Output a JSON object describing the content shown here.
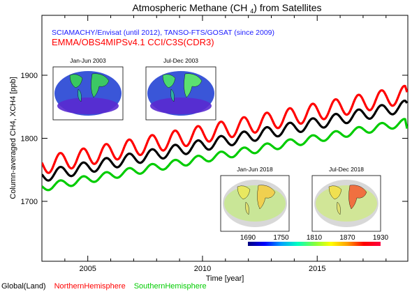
{
  "chart_data": {
    "type": "line",
    "title": "Atmospheric Methane (CH4) from Satellites",
    "subtitle_1": "SCIAMACHY/Envisat (until 2012), TANSO-FTS/GOSAT (since 2009)",
    "subtitle_2": "EMMA/OBS4MIPSv4.1 CCI/C3S(CDR3)",
    "xlabel": "Time [year]",
    "ylabel": "Column-averaged CH4, XCH4 [ppb]",
    "xlim": [
      2003.0,
      2018.95
    ],
    "ylim": [
      1605,
      1995
    ],
    "x_ticks": [
      2005,
      2010,
      2015
    ],
    "x_tick_labels": [
      "2005",
      "2010",
      "2015"
    ],
    "y_ticks": [
      1700,
      1800,
      1900
    ],
    "y_tick_labels": [
      "1700",
      "1800",
      "1900"
    ],
    "grid": false,
    "series": [
      {
        "name": "Global(Land)",
        "color": "#000000",
        "start_value": 1740,
        "trend_per_year": 7.0,
        "seasonal_amplitude": 9,
        "end_drop": 3
      },
      {
        "name": "NorthernHemisphere",
        "color": "#ff0000",
        "start_value": 1757,
        "trend_per_year": 7.1,
        "seasonal_amplitude": 14,
        "end_drop": 10
      },
      {
        "name": "SouthernHemisphere",
        "color": "#00cc00",
        "start_value": 1722,
        "trend_per_year": 6.5,
        "seasonal_amplitude": 6,
        "end_drop": 20
      }
    ],
    "insets": [
      {
        "label": "Jan-Jun 2003",
        "style": "cool"
      },
      {
        "label": "Jul-Dec 2003",
        "style": "cool"
      },
      {
        "label": "Jan-Jun 2018",
        "style": "warm"
      },
      {
        "label": "Jul-Dec 2018",
        "style": "warm"
      }
    ],
    "colorbar": {
      "tick_labels": [
        "1690",
        "1750",
        "1810",
        "1870",
        "1930"
      ],
      "colors": [
        "#000080",
        "#0000ff",
        "#00a0ff",
        "#00ffc0",
        "#80ff40",
        "#ffff00",
        "#ffa000",
        "#ff0000",
        "#ff0040"
      ]
    }
  }
}
